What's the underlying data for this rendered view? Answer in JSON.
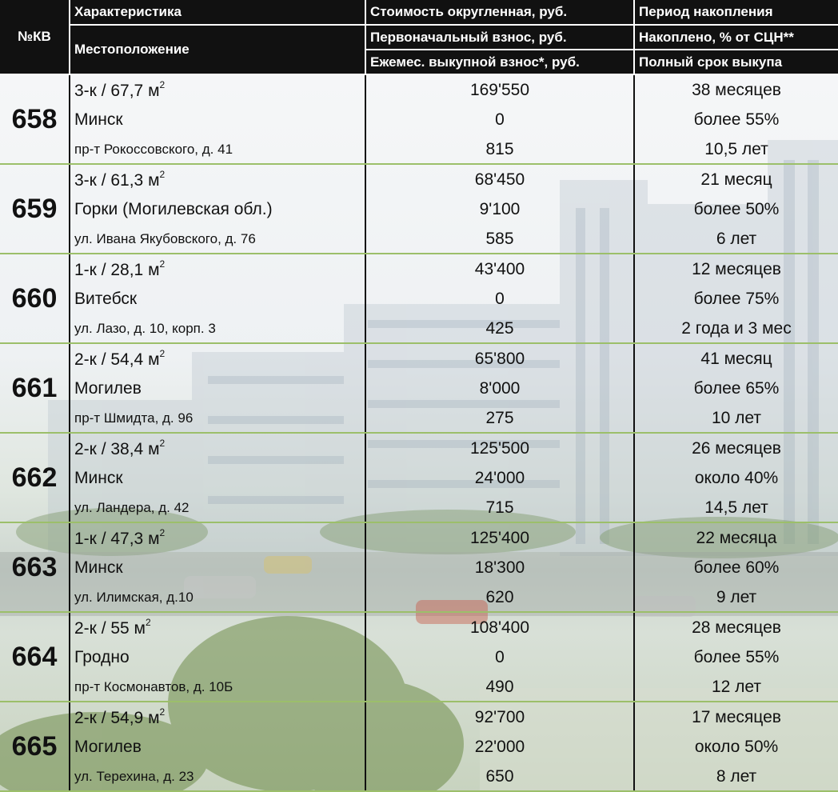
{
  "header": {
    "num_label": "№КВ",
    "col1_row1": "Характеристика",
    "col1_row2": "Местоположение",
    "col2_row1": "Стоимость округленная, руб.",
    "col2_row2": "Первоначальный взнос, руб.",
    "col2_row3": "Ежемес. выкупной взнос*, руб.",
    "col3_row1": "Период накопления",
    "col3_row2": "Накоплено, % от СЦН**",
    "col3_row3": "Полный срок выкупа"
  },
  "units": [
    {
      "num": "658",
      "type": "3-к / 67,7 м",
      "sup": "2",
      "city": "Минск",
      "address": "пр-т Рокоссовского, д. 41",
      "cost": "169'550",
      "initial": "0",
      "monthly": "815",
      "period": "38 месяцев",
      "accumulated": "более 55%",
      "term": "10,5 лет"
    },
    {
      "num": "659",
      "type": "3-к / 61,3 м",
      "sup": "2",
      "city": "Горки (Могилевская обл.)",
      "address": "ул. Ивана Якубовского, д. 76",
      "cost": "68'450",
      "initial": "9'100",
      "monthly": "585",
      "period": "21 месяц",
      "accumulated": "более 50%",
      "term": "6 лет"
    },
    {
      "num": "660",
      "type": "1-к / 28,1 м",
      "sup": "2",
      "city": "Витебск",
      "address": "ул. Лазо, д. 10, корп. 3",
      "cost": "43'400",
      "initial": "0",
      "monthly": "425",
      "period": "12 месяцев",
      "accumulated": "более 75%",
      "term": "2 года и 3 мес"
    },
    {
      "num": "661",
      "type": "2-к / 54,4 м",
      "sup": "2",
      "city": "Могилев",
      "address": "пр-т Шмидта, д. 96",
      "cost": "65'800",
      "initial": "8'000",
      "monthly": "275",
      "period": "41 месяц",
      "accumulated": "более 65%",
      "term": "10 лет"
    },
    {
      "num": "662",
      "type": "2-к / 38,4 м",
      "sup": "2",
      "city": "Минск",
      "address": "ул. Ландера, д. 42",
      "cost": "125'500",
      "initial": "24'000",
      "monthly": "715",
      "period": "26 месяцев",
      "accumulated": "около 40%",
      "term": "14,5 лет"
    },
    {
      "num": "663",
      "type": "1-к / 47,3 м",
      "sup": "2",
      "city": "Минск",
      "address": "ул. Илимская, д.10",
      "cost": "125'400",
      "initial": "18'300",
      "monthly": "620",
      "period": "22 месяца",
      "accumulated": "более 60%",
      "term": "9 лет"
    },
    {
      "num": "664",
      "type": "2-к / 55 м",
      "sup": "2",
      "city": "Гродно",
      "address": "пр-т Космонавтов, д. 10Б",
      "cost": "108'400",
      "initial": "0",
      "monthly": "490",
      "period": "28 месяцев",
      "accumulated": "более 55%",
      "term": "12 лет"
    },
    {
      "num": "665",
      "type": "2-к / 54,9 м",
      "sup": "2",
      "city": "Могилев",
      "address": "ул. Терехина, д. 23",
      "cost": "92'700",
      "initial": "22'000",
      "monthly": "650",
      "period": "17 месяцев",
      "accumulated": "около 50%",
      "term": "8 лет"
    }
  ]
}
